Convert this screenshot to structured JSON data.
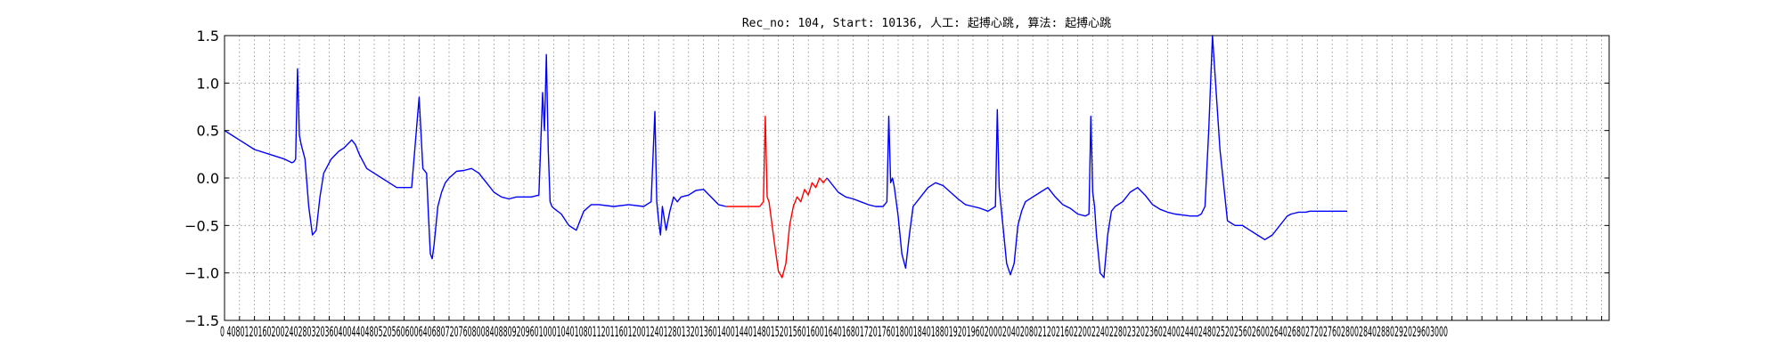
{
  "chart_data": {
    "type": "line",
    "title": "Rec_no: 104, Start: 10136, 人工: 起搏心跳, 算法: 起搏心跳",
    "xlabel": "",
    "ylabel": "",
    "xlim": [
      0,
      3700
    ],
    "ylim": [
      -1.5,
      1.5
    ],
    "grid": true,
    "grid_style": "dotted",
    "y_ticks": [
      -1.5,
      -1.0,
      -0.5,
      0.0,
      0.5,
      1.0,
      1.5
    ],
    "y_tick_labels": [
      "−1.5",
      "−1.0",
      "−0.5",
      "0.0",
      "0.5",
      "1.0",
      "1.5"
    ],
    "x_tick_step": 40,
    "x_tick_label_text": "0 4080120160200240280320360400440480520560600640680720760800840880920960100010401080112011601200124012801320136014001440148015201560160016401680172017601800184018801920196020002040208021202160220022402280232023602400244024802520256026002640268027202760280028402880292029603000",
    "colors": {
      "normal_segment": "#0000ff",
      "highlighted_segment": "#ff0000",
      "axes": "#000000",
      "grid": "#888888"
    },
    "series": [
      {
        "color": "#0000ff",
        "x": [
          0,
          20,
          40,
          80,
          120,
          160,
          170,
          180,
          185,
          190,
          195,
          200,
          205,
          215,
          225,
          235,
          245,
          255,
          265,
          285,
          305,
          320,
          340,
          350,
          360,
          380,
          400,
          420,
          440,
          460,
          480,
          500,
          520,
          530,
          540,
          545,
          550,
          555,
          560,
          570,
          580,
          590,
          600,
          620,
          640,
          660,
          680,
          700,
          720,
          740,
          760,
          780,
          820,
          840,
          850,
          855,
          860,
          865,
          870,
          875,
          880,
          900,
          920,
          940,
          960,
          980,
          1000,
          1040,
          1080,
          1120,
          1140,
          1150,
          1155,
          1160,
          1165,
          1170,
          1180,
          1190,
          1200,
          1210,
          1220,
          1240,
          1260,
          1280,
          1300,
          1320,
          1340
        ],
        "y": [
          0.5,
          0.45,
          0.4,
          0.3,
          0.25,
          0.2,
          0.18,
          0.16,
          0.17,
          0.2,
          1.15,
          0.45,
          0.35,
          0.2,
          -0.3,
          -0.6,
          -0.55,
          -0.2,
          0.05,
          0.2,
          0.28,
          0.32,
          0.4,
          0.35,
          0.25,
          0.1,
          0.05,
          0.0,
          -0.05,
          -0.1,
          -0.1,
          -0.1,
          0.85,
          0.1,
          0.05,
          -0.4,
          -0.8,
          -0.85,
          -0.7,
          -0.3,
          -0.15,
          -0.05,
          0.0,
          0.07,
          0.08,
          0.1,
          0.05,
          -0.05,
          -0.15,
          -0.2,
          -0.22,
          -0.2,
          -0.2,
          -0.18,
          0.9,
          0.5,
          1.3,
          0.3,
          -0.25,
          -0.3,
          -0.32,
          -0.38,
          -0.5,
          -0.55,
          -0.35,
          -0.28,
          -0.28,
          -0.3,
          -0.28,
          -0.3,
          -0.25,
          0.7,
          -0.25,
          -0.45,
          -0.6,
          -0.3,
          -0.55,
          -0.35,
          -0.2,
          -0.25,
          -0.2,
          -0.18,
          -0.13,
          -0.12,
          -0.2,
          -0.28,
          -0.3
        ]
      },
      {
        "color": "#ff0000",
        "x": [
          1340,
          1360,
          1380,
          1400,
          1420,
          1430,
          1440,
          1445,
          1450,
          1455,
          1460,
          1470,
          1480,
          1490,
          1500,
          1510,
          1520,
          1530,
          1540,
          1550,
          1560,
          1570,
          1580,
          1590,
          1600,
          1610
        ],
        "y": [
          -0.3,
          -0.3,
          -0.3,
          -0.3,
          -0.3,
          -0.3,
          -0.25,
          0.65,
          -0.2,
          -0.25,
          -0.4,
          -0.7,
          -0.98,
          -1.05,
          -0.9,
          -0.5,
          -0.3,
          -0.2,
          -0.25,
          -0.12,
          -0.18,
          -0.05,
          -0.1,
          0.0,
          -0.05,
          0.0
        ]
      },
      {
        "color": "#0000ff",
        "x": [
          1610,
          1640,
          1660,
          1680,
          1700,
          1720,
          1740,
          1760,
          1770,
          1775,
          1780,
          1785,
          1790,
          1800,
          1810,
          1820,
          1830,
          1840,
          1860,
          1880,
          1900,
          1920,
          1940,
          1960,
          1980,
          2000,
          2020,
          2040,
          2060,
          2065,
          2070,
          2075,
          2080,
          2090,
          2100,
          2110,
          2120,
          2130,
          2140,
          2160,
          2180,
          2200,
          2220,
          2240,
          2260,
          2280,
          2300,
          2310,
          2315,
          2320,
          2325,
          2330,
          2340,
          2350,
          2360,
          2370,
          2380,
          2400,
          2420,
          2440,
          2460,
          2480,
          2500,
          2520,
          2540,
          2560,
          2580,
          2600,
          2610,
          2620,
          2630,
          2640,
          2660,
          2680,
          2700,
          2720,
          2740,
          2760,
          2780,
          2800,
          2820,
          2830,
          2840,
          2850,
          2860,
          2870,
          2880,
          2890,
          2900,
          2920,
          2940,
          2960,
          2980,
          3000
        ],
        "y": [
          0.0,
          -0.15,
          -0.2,
          -0.22,
          -0.25,
          -0.28,
          -0.3,
          -0.3,
          -0.25,
          0.65,
          -0.05,
          0.0,
          -0.1,
          -0.4,
          -0.8,
          -0.95,
          -0.6,
          -0.3,
          -0.2,
          -0.1,
          -0.05,
          -0.08,
          -0.15,
          -0.22,
          -0.28,
          -0.3,
          -0.32,
          -0.35,
          -0.3,
          0.72,
          -0.1,
          -0.3,
          -0.5,
          -0.9,
          -1.02,
          -0.9,
          -0.5,
          -0.35,
          -0.25,
          -0.2,
          -0.15,
          -0.1,
          -0.2,
          -0.28,
          -0.32,
          -0.38,
          -0.4,
          -0.38,
          0.65,
          -0.15,
          -0.3,
          -0.6,
          -1.0,
          -1.05,
          -0.6,
          -0.35,
          -0.3,
          -0.25,
          -0.15,
          -0.1,
          -0.18,
          -0.28,
          -0.33,
          -0.36,
          -0.38,
          -0.39,
          -0.4,
          -0.4,
          -0.38,
          -0.3,
          0.5,
          1.5,
          0.3,
          -0.45,
          -0.5,
          -0.5,
          -0.55,
          -0.6,
          -0.65,
          -0.6,
          -0.5,
          -0.45,
          -0.4,
          -0.38,
          -0.37,
          -0.36,
          -0.36,
          -0.36,
          -0.35,
          -0.35,
          -0.35,
          -0.35,
          -0.35,
          -0.35
        ]
      }
    ]
  }
}
